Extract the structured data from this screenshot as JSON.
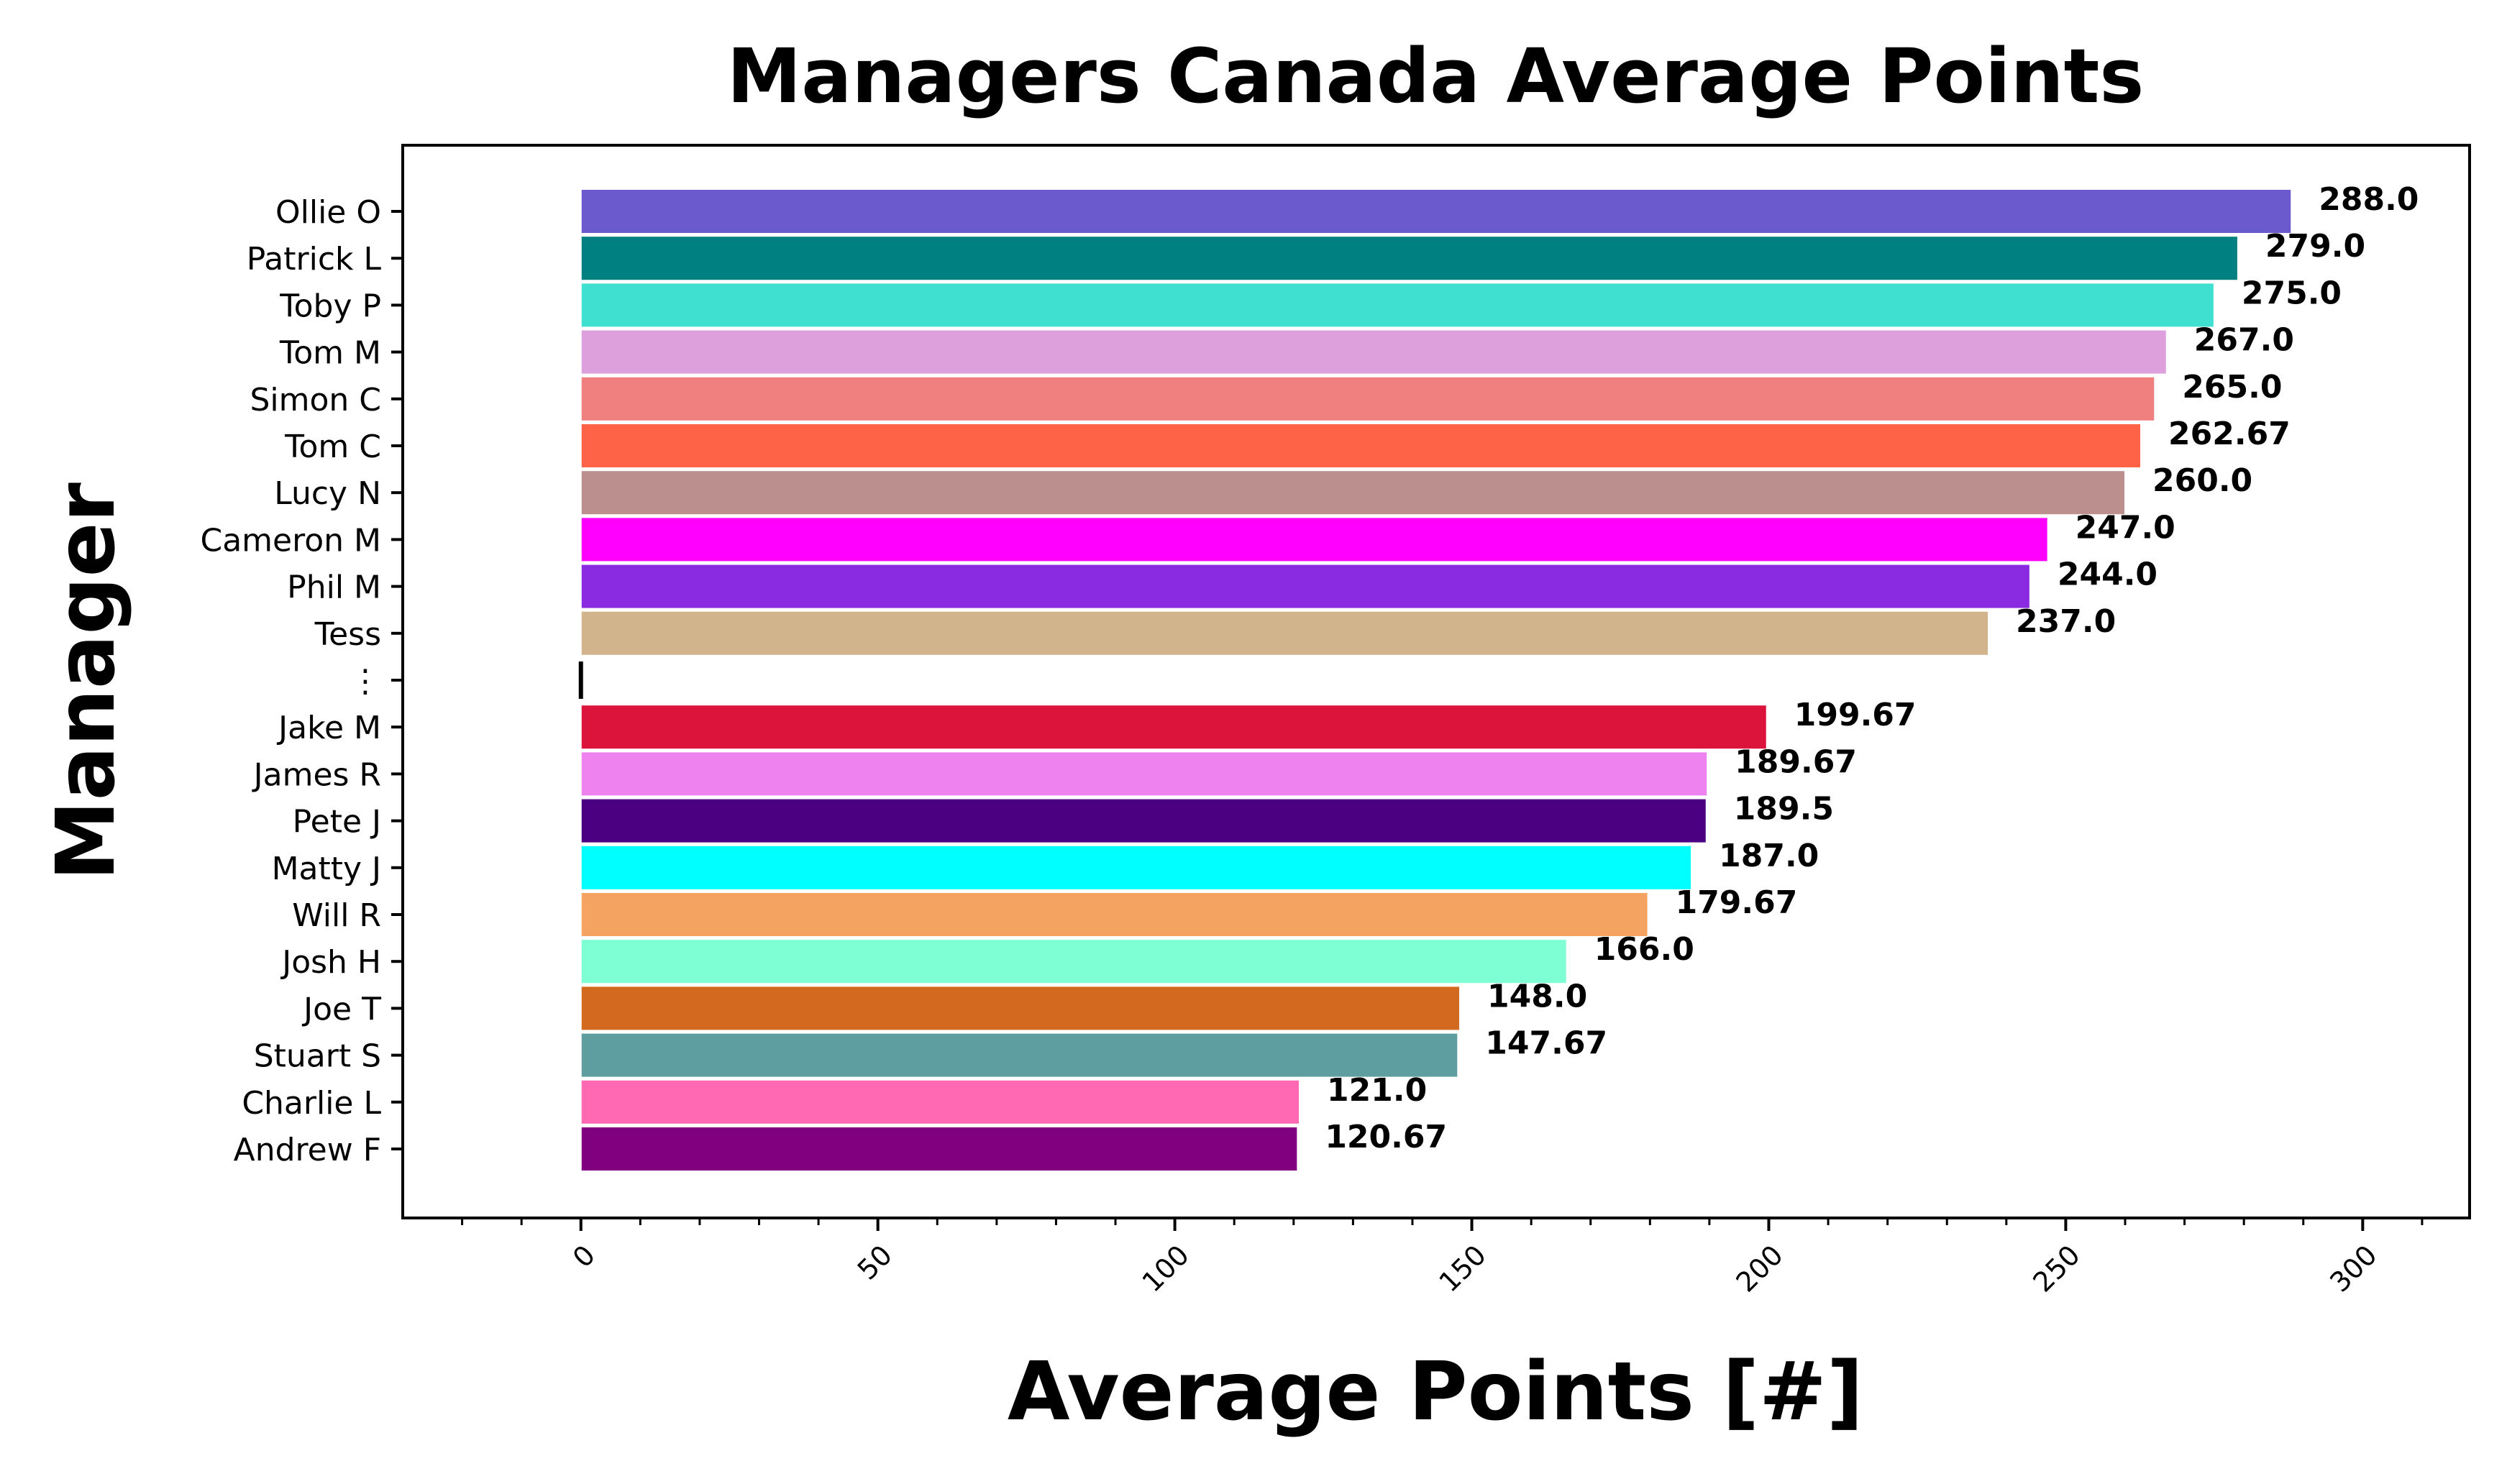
{
  "chart_data": {
    "type": "bar",
    "orientation": "horizontal",
    "title": "Managers Canada Average Points",
    "xlabel": "Average Points [#]",
    "ylabel": "Manager",
    "xlim": [
      -30,
      318
    ],
    "xticks": [
      "0",
      "50",
      "100",
      "150",
      "200",
      "250",
      "300"
    ],
    "grid": false,
    "legend": "none",
    "categories": [
      "Ollie O",
      "Patrick L",
      "Toby P",
      "Tom M",
      "Simon C",
      "Tom C",
      "Lucy N",
      "Cameron M",
      "Phil M",
      "Tess",
      "⋮",
      "Jake M",
      "James R",
      "Pete J",
      "Matty J",
      "Will R",
      "Josh H",
      "Joe T",
      "Stuart S",
      "Charlie L",
      "Andrew F"
    ],
    "values": [
      288.0,
      279.0,
      275.0,
      267.0,
      265.0,
      262.67,
      260.0,
      247.0,
      244.0,
      237.0,
      0,
      199.67,
      189.67,
      189.5,
      187.0,
      179.67,
      166.0,
      148.0,
      147.67,
      121.0,
      120.67
    ],
    "value_labels": [
      "288.0",
      "279.0",
      "275.0",
      "267.0",
      "265.0",
      "262.67",
      "260.0",
      "247.0",
      "244.0",
      "237.0",
      "",
      "199.67",
      "189.67",
      "189.5",
      "187.0",
      "179.67",
      "166.0",
      "148.0",
      "147.67",
      "121.0",
      "120.67"
    ],
    "colors": [
      "#6a5acd",
      "#008080",
      "#40e0d0",
      "#dda0dd",
      "#f08080",
      "#ff6347",
      "#bc8f8f",
      "#ff00ff",
      "#8a2be2",
      "#d2b48c",
      "#000000",
      "#dc143c",
      "#ee82ee",
      "#4b0082",
      "#00ffff",
      "#f4a460",
      "#7fffd4",
      "#d2691e",
      "#5f9ea0",
      "#ff69b4",
      "#800080"
    ]
  }
}
